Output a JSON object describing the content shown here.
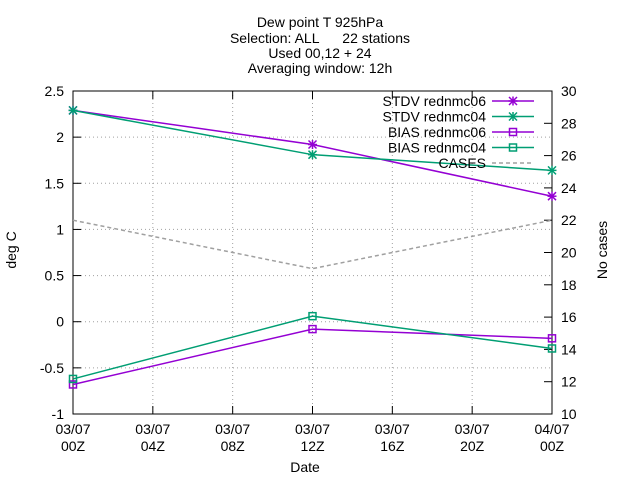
{
  "chart_data": {
    "type": "line",
    "title_lines": [
      "Dew point T 925hPa",
      "Selection: ALL      22 stations",
      "Used 00,12 + 24",
      "Averaging window: 12h"
    ],
    "xlabel": "Date",
    "ylabel": "deg C",
    "y2label": "No cases",
    "x_ticks": [
      {
        "hour": 0,
        "line1": "03/07",
        "line2": "00Z"
      },
      {
        "hour": 4,
        "line1": "03/07",
        "line2": "04Z"
      },
      {
        "hour": 8,
        "line1": "03/07",
        "line2": "08Z"
      },
      {
        "hour": 12,
        "line1": "03/07",
        "line2": "12Z"
      },
      {
        "hour": 16,
        "line1": "03/07",
        "line2": "16Z"
      },
      {
        "hour": 20,
        "line1": "03/07",
        "line2": "20Z"
      },
      {
        "hour": 24,
        "line1": "04/07",
        "line2": "00Z"
      }
    ],
    "xlim": [
      0,
      24
    ],
    "ylim": [
      -1,
      2.5
    ],
    "y_ticks": [
      "-1",
      "-0.5",
      "0",
      "0.5",
      "1",
      "1.5",
      "2",
      "2.5"
    ],
    "y2lim": [
      10,
      30
    ],
    "y2_ticks": [
      "10",
      "12",
      "14",
      "16",
      "18",
      "20",
      "22",
      "24",
      "26",
      "28",
      "30"
    ],
    "legend_position": "top-right",
    "series": [
      {
        "name": "STDV rednmc06",
        "color": "#9400d3",
        "marker": "star",
        "axis": "y",
        "dashed": false,
        "x": [
          0,
          12,
          24
        ],
        "y": [
          2.29,
          1.92,
          1.36
        ]
      },
      {
        "name": "STDV rednmc04",
        "color": "#009e73",
        "marker": "star",
        "axis": "y",
        "dashed": false,
        "x": [
          0,
          12,
          24
        ],
        "y": [
          2.29,
          1.81,
          1.64
        ]
      },
      {
        "name": "BIAS rednmc06",
        "color": "#9400d3",
        "marker": "square",
        "axis": "y",
        "dashed": false,
        "x": [
          0,
          12,
          24
        ],
        "y": [
          -0.68,
          -0.08,
          -0.18
        ]
      },
      {
        "name": "BIAS rednmc04",
        "color": "#009e73",
        "marker": "square",
        "axis": "y",
        "dashed": false,
        "x": [
          0,
          12,
          24
        ],
        "y": [
          -0.62,
          0.06,
          -0.29
        ]
      },
      {
        "name": "CASES",
        "color": "#a0a0a0",
        "marker": "none",
        "axis": "y2",
        "dashed": true,
        "x": [
          0,
          12,
          24
        ],
        "y": [
          22,
          19,
          22
        ]
      }
    ]
  }
}
